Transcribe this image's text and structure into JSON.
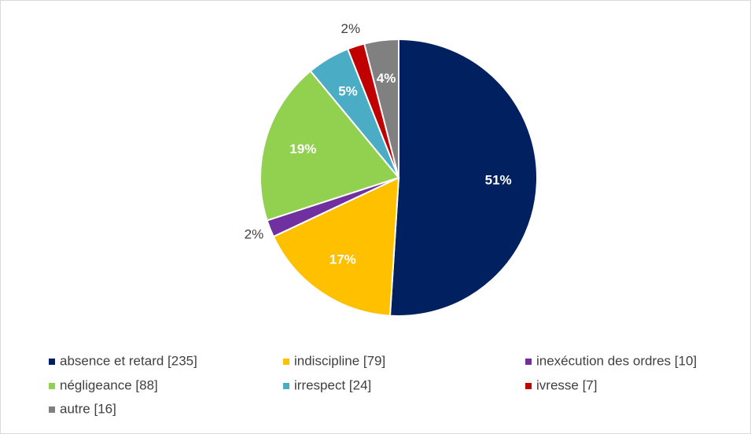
{
  "chart_data": {
    "type": "pie",
    "categories": [
      "absence et retard [235]",
      "indiscipline [79]",
      "inexécution des ordres [10]",
      "négligeance [88]",
      "irrespect [24]",
      "ivresse [7]",
      "autre [16]"
    ],
    "values": [
      51,
      17,
      2,
      19,
      5,
      2,
      4
    ],
    "value_labels": [
      "51%",
      "17%",
      "2%",
      "19%",
      "5%",
      "2%",
      "4%"
    ],
    "colors": [
      "#002060",
      "#ffc000",
      "#7030a0",
      "#92d050",
      "#4bacc6",
      "#c00000",
      "#808080"
    ],
    "legend": "bottom"
  }
}
